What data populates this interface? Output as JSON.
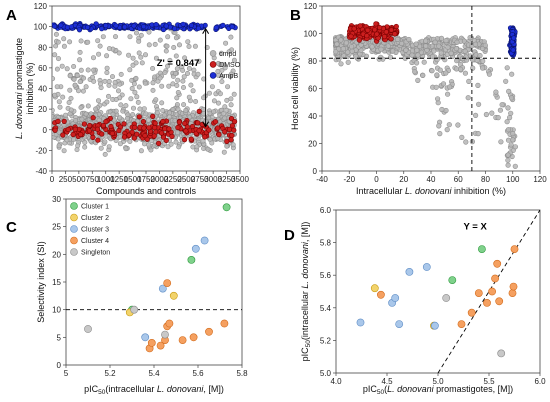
{
  "colors": {
    "cmpd": "#b9b9b9",
    "cmpd_edge": "#8e8e8e",
    "dmso": "#cc1f1f",
    "dmso_edge": "#7a0000",
    "ampb": "#1d2fd6",
    "ampb_edge": "#0a1470",
    "cluster1": "#7fd18b",
    "cluster2": "#f2d36b",
    "cluster3": "#a9c7ea",
    "cluster4": "#f5a060",
    "singleton": "#c8c8c8"
  },
  "chart_data": [
    {
      "panel_label": "A",
      "type": "scatter",
      "xlabel": "Compounds and controls",
      "ylabel_lines": [
        "L. donovani promastigote",
        "inhibition (%)"
      ],
      "xlim": [
        0,
        3500
      ],
      "ylim": [
        -40,
        120
      ],
      "xticks": [
        "0",
        "250",
        "500",
        "750",
        "1000",
        "1250",
        "1500",
        "1750",
        "2000",
        "2250",
        "2500",
        "2750",
        "3000",
        "3250",
        "3500"
      ],
      "yticks": [
        "-40",
        "-20",
        "0",
        "20",
        "40",
        "60",
        "80",
        "100",
        "120"
      ],
      "legend": [
        "cmpd",
        "DMSO",
        "AmpB"
      ],
      "legend_position": "right",
      "annotation": "Z' = 0.847",
      "series": [
        {
          "name": "cmpd",
          "distribution": "dense band near 0 with outliers up to ~100",
          "x_range": [
            0,
            3400
          ],
          "y_center": 2,
          "y_spread": 14,
          "outlier_fraction": 0.3
        },
        {
          "name": "DMSO",
          "x_range": [
            0,
            3400
          ],
          "y_center": 0,
          "y_spread": 8
        },
        {
          "name": "AmpB",
          "x_range": [
            0,
            3400
          ],
          "y_center": 100,
          "y_spread": 1.5
        }
      ]
    },
    {
      "panel_label": "B",
      "type": "scatter",
      "xlabel_parts": [
        "Intracellular ",
        "L. donovani",
        " inhibition (%)"
      ],
      "ylabel": "Host cell viability (%)",
      "xlim": [
        -40,
        120
      ],
      "ylim": [
        0,
        120
      ],
      "xticks": [
        "-40",
        "-20",
        "0",
        "20",
        "40",
        "60",
        "80",
        "100",
        "120"
      ],
      "yticks": [
        "0",
        "20",
        "40",
        "60",
        "80",
        "100",
        "120"
      ],
      "threshold_x": 70,
      "threshold_y": 82,
      "series": [
        {
          "name": "cmpd",
          "x_range": [
            -30,
            100
          ],
          "y_center": 95
        },
        {
          "name": "DMSO",
          "x_range": [
            -20,
            15
          ],
          "y_center": 102
        },
        {
          "name": "AmpB",
          "x_center": 100,
          "y_range": [
            82,
            104
          ]
        }
      ]
    },
    {
      "panel_label": "C",
      "type": "scatter",
      "xlabel_parts": [
        "pIC",
        "50",
        "(intracellular ",
        "L. donovani",
        ", [M])"
      ],
      "ylabel": "Selectivity index (SI)",
      "xlim": [
        5.0,
        5.8
      ],
      "ylim": [
        0,
        30
      ],
      "xticks": [
        "5",
        "5.2",
        "5.4",
        "5.6",
        "5.8"
      ],
      "yticks": [
        "0",
        "5",
        "10",
        "15",
        "20",
        "25",
        "30"
      ],
      "threshold_y": 10,
      "legend": [
        "Cluster 1",
        "Cluster 2",
        "Cluster 3",
        "Cluster 4",
        "Singleton"
      ],
      "legend_position": "top-left",
      "series": [
        {
          "name": "Cluster 1",
          "points": [
            [
              5.3,
              10.0
            ],
            [
              5.57,
              19.0
            ],
            [
              5.73,
              28.5
            ]
          ]
        },
        {
          "name": "Cluster 2",
          "points": [
            [
              5.29,
              9.5
            ],
            [
              5.49,
              12.5
            ]
          ]
        },
        {
          "name": "Cluster 3",
          "points": [
            [
              5.36,
              5.0
            ],
            [
              5.44,
              13.8
            ],
            [
              5.59,
              21.0
            ],
            [
              5.63,
              22.5
            ]
          ]
        },
        {
          "name": "Cluster 4",
          "points": [
            [
              5.38,
              3.0
            ],
            [
              5.39,
              4.0
            ],
            [
              5.43,
              3.5
            ],
            [
              5.45,
              4.5
            ],
            [
              5.46,
              7.0
            ],
            [
              5.47,
              7.5
            ],
            [
              5.46,
              14.8
            ],
            [
              5.53,
              4.5
            ],
            [
              5.58,
              5.0
            ],
            [
              5.65,
              6.0
            ],
            [
              5.72,
              7.5
            ]
          ]
        },
        {
          "name": "Singleton",
          "points": [
            [
              5.1,
              6.5
            ],
            [
              5.31,
              10.0
            ],
            [
              5.45,
              5.5
            ]
          ]
        }
      ]
    },
    {
      "panel_label": "D",
      "type": "scatter",
      "xlabel_parts": [
        "pIC",
        "50",
        "(",
        "L. donovani",
        " promastigotes, [M])"
      ],
      "ylabel_parts": [
        "pIC",
        "50",
        "(intracellular ",
        "L. donovani",
        ", [M])"
      ],
      "xlim": [
        4.0,
        6.0
      ],
      "ylim": [
        5.0,
        6.0
      ],
      "xticks": [
        "4.0",
        "4.5",
        "5.0",
        "5.5",
        "6.0"
      ],
      "yticks": [
        "5.0",
        "5.2",
        "5.4",
        "5.6",
        "5.8",
        "6.0"
      ],
      "identity_line_label": "Y = X",
      "series": [
        {
          "name": "Cluster 1",
          "points": [
            [
              5.14,
              5.57
            ],
            [
              5.43,
              5.76
            ]
          ]
        },
        {
          "name": "Cluster 2",
          "points": [
            [
              4.38,
              5.52
            ],
            [
              4.96,
              5.29
            ]
          ]
        },
        {
          "name": "Cluster 3",
          "points": [
            [
              4.24,
              5.31
            ],
            [
              4.55,
              5.43
            ],
            [
              4.58,
              5.46
            ],
            [
              4.62,
              5.3
            ],
            [
              4.72,
              5.62
            ],
            [
              4.89,
              5.65
            ],
            [
              4.97,
              5.29
            ]
          ]
        },
        {
          "name": "Cluster 4",
          "points": [
            [
              4.44,
              5.48
            ],
            [
              5.23,
              5.3
            ],
            [
              5.33,
              5.37
            ],
            [
              5.4,
              5.49
            ],
            [
              5.48,
              5.43
            ],
            [
              5.53,
              5.5
            ],
            [
              5.56,
              5.58
            ],
            [
              5.58,
              5.67
            ],
            [
              5.6,
              5.44
            ],
            [
              5.73,
              5.49
            ],
            [
              5.74,
              5.53
            ],
            [
              5.75,
              5.76
            ]
          ]
        },
        {
          "name": "Singleton",
          "points": [
            [
              5.08,
              5.46
            ],
            [
              5.62,
              5.12
            ]
          ]
        }
      ]
    }
  ]
}
